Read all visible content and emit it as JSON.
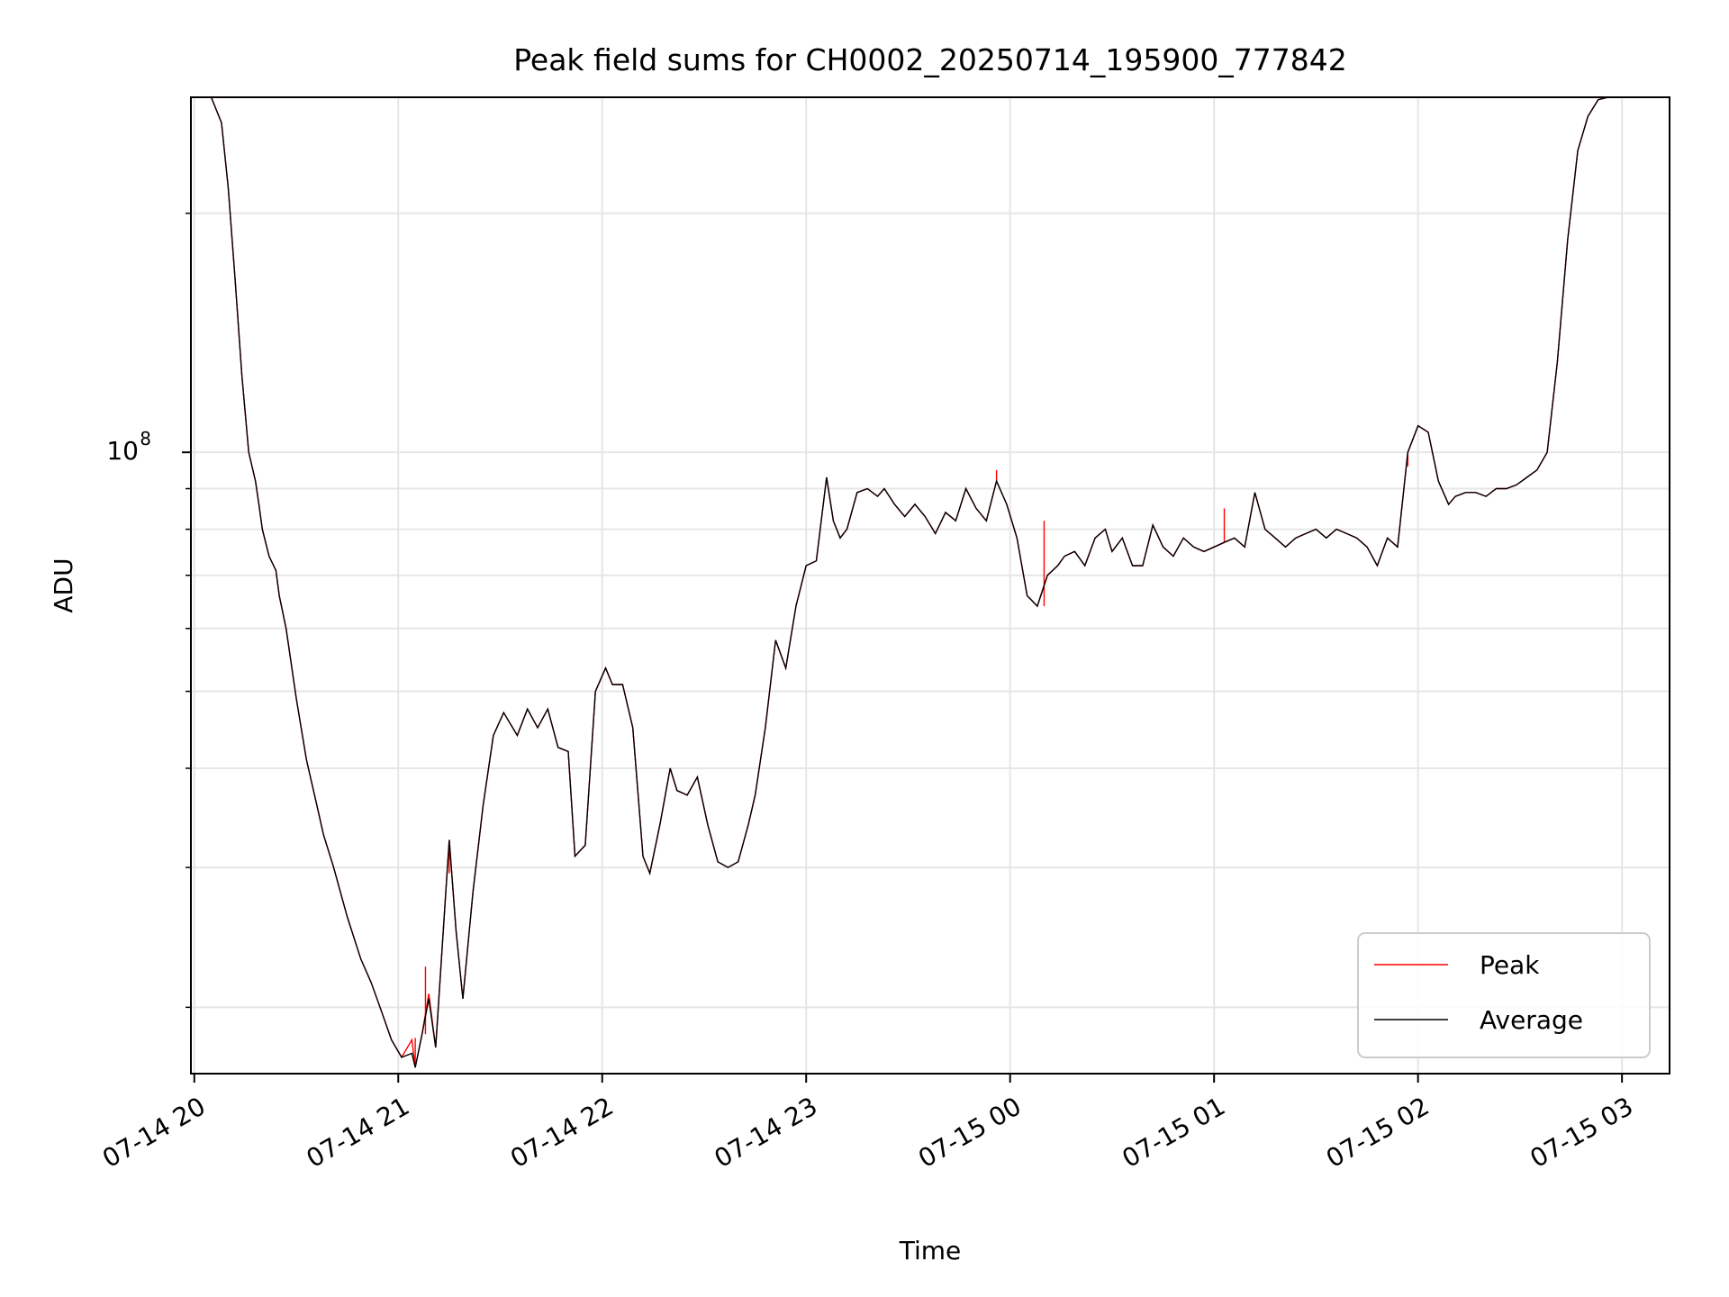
{
  "chart_data": {
    "type": "line",
    "title": "Peak field sums for CH0002_20250714_195900_777842",
    "xlabel": "Time",
    "ylabel": "ADU",
    "y_scale": "log",
    "y_tick_major_label": {
      "base": "10",
      "exp": "8",
      "value": 100000000
    },
    "y_minor_ticks": [
      20000000,
      30000000,
      40000000,
      50000000,
      60000000,
      70000000,
      80000000,
      90000000,
      200000000
    ],
    "ylim": [
      16500000,
      280000000
    ],
    "xlim": [
      "2025-07-14 19:59",
      "2025-07-15 03:14"
    ],
    "x_ticks": [
      {
        "t": "2025-07-14 20:00",
        "label": "07-14 20"
      },
      {
        "t": "2025-07-14 21:00",
        "label": "07-14 21"
      },
      {
        "t": "2025-07-14 22:00",
        "label": "07-14 22"
      },
      {
        "t": "2025-07-14 23:00",
        "label": "07-14 23"
      },
      {
        "t": "2025-07-15 00:00",
        "label": "07-15 00"
      },
      {
        "t": "2025-07-15 01:00",
        "label": "07-15 01"
      },
      {
        "t": "2025-07-15 02:00",
        "label": "07-15 02"
      },
      {
        "t": "2025-07-15 03:00",
        "label": "07-15 03"
      }
    ],
    "grid": true,
    "legend_position": "lower-right",
    "series": [
      {
        "name": "Peak",
        "color": "#ff0000",
        "width": 1.0
      },
      {
        "name": "Average",
        "color": "#000000",
        "width": 1.0
      }
    ],
    "x": [
      "2025-07-14 19:59",
      "2025-07-14 20:05",
      "2025-07-14 20:08",
      "2025-07-14 20:10",
      "2025-07-14 20:12",
      "2025-07-14 20:14",
      "2025-07-14 20:16",
      "2025-07-14 20:18",
      "2025-07-14 20:19",
      "2025-07-14 20:20",
      "2025-07-14 20:22",
      "2025-07-14 20:24",
      "2025-07-14 20:25",
      "2025-07-14 20:27",
      "2025-07-14 20:30",
      "2025-07-14 20:33",
      "2025-07-14 20:36",
      "2025-07-14 20:38",
      "2025-07-14 20:41",
      "2025-07-14 20:45",
      "2025-07-14 20:49",
      "2025-07-14 20:52",
      "2025-07-14 20:55",
      "2025-07-14 20:58",
      "2025-07-14 21:01",
      "2025-07-14 21:04",
      "2025-07-14 21:05",
      "2025-07-14 21:07",
      "2025-07-14 21:09",
      "2025-07-14 21:11",
      "2025-07-14 21:14",
      "2025-07-14 21:15",
      "2025-07-14 21:17",
      "2025-07-14 21:19",
      "2025-07-14 21:22",
      "2025-07-14 21:25",
      "2025-07-14 21:28",
      "2025-07-14 21:31",
      "2025-07-14 21:35",
      "2025-07-14 21:38",
      "2025-07-14 21:41",
      "2025-07-14 21:44",
      "2025-07-14 21:47",
      "2025-07-14 21:50",
      "2025-07-14 21:52",
      "2025-07-14 21:55",
      "2025-07-14 21:58",
      "2025-07-14 22:01",
      "2025-07-14 22:03",
      "2025-07-14 22:06",
      "2025-07-14 22:09",
      "2025-07-14 22:12",
      "2025-07-14 22:14",
      "2025-07-14 22:17",
      "2025-07-14 22:20",
      "2025-07-14 22:22",
      "2025-07-14 22:25",
      "2025-07-14 22:28",
      "2025-07-14 22:31",
      "2025-07-14 22:34",
      "2025-07-14 22:37",
      "2025-07-14 22:40",
      "2025-07-14 22:43",
      "2025-07-14 22:45",
      "2025-07-14 22:48",
      "2025-07-14 22:51",
      "2025-07-14 22:54",
      "2025-07-14 22:57",
      "2025-07-14 23:00",
      "2025-07-14 23:03",
      "2025-07-14 23:06",
      "2025-07-14 23:08",
      "2025-07-14 23:10",
      "2025-07-14 23:12",
      "2025-07-14 23:15",
      "2025-07-14 23:18",
      "2025-07-14 23:21",
      "2025-07-14 23:23",
      "2025-07-14 23:26",
      "2025-07-14 23:29",
      "2025-07-14 23:32",
      "2025-07-14 23:35",
      "2025-07-14 23:38",
      "2025-07-14 23:41",
      "2025-07-14 23:44",
      "2025-07-14 23:47",
      "2025-07-14 23:50",
      "2025-07-14 23:53",
      "2025-07-14 23:56",
      "2025-07-14 23:59",
      "2025-07-15 00:02",
      "2025-07-15 00:05",
      "2025-07-15 00:08",
      "2025-07-15 00:11",
      "2025-07-15 00:14",
      "2025-07-15 00:16",
      "2025-07-15 00:19",
      "2025-07-15 00:22",
      "2025-07-15 00:25",
      "2025-07-15 00:28",
      "2025-07-15 00:30",
      "2025-07-15 00:33",
      "2025-07-15 00:36",
      "2025-07-15 00:39",
      "2025-07-15 00:42",
      "2025-07-15 00:45",
      "2025-07-15 00:48",
      "2025-07-15 00:51",
      "2025-07-15 00:54",
      "2025-07-15 00:57",
      "2025-07-15 01:00",
      "2025-07-15 01:03",
      "2025-07-15 01:06",
      "2025-07-15 01:09",
      "2025-07-15 01:12",
      "2025-07-15 01:15",
      "2025-07-15 01:18",
      "2025-07-15 01:21",
      "2025-07-15 01:24",
      "2025-07-15 01:27",
      "2025-07-15 01:30",
      "2025-07-15 01:33",
      "2025-07-15 01:36",
      "2025-07-15 01:39",
      "2025-07-15 01:42",
      "2025-07-15 01:45",
      "2025-07-15 01:48",
      "2025-07-15 01:51",
      "2025-07-15 01:54",
      "2025-07-15 01:57",
      "2025-07-15 02:00",
      "2025-07-15 02:03",
      "2025-07-15 02:06",
      "2025-07-15 02:09",
      "2025-07-15 02:11",
      "2025-07-15 02:14",
      "2025-07-15 02:17",
      "2025-07-15 02:20",
      "2025-07-15 02:23",
      "2025-07-15 02:26",
      "2025-07-15 02:29",
      "2025-07-15 02:32",
      "2025-07-15 02:35",
      "2025-07-15 02:38",
      "2025-07-15 02:41",
      "2025-07-15 02:44",
      "2025-07-15 02:47",
      "2025-07-15 02:50",
      "2025-07-15 02:53",
      "2025-07-15 02:56",
      "2025-07-15 03:00",
      "2025-07-15 03:02"
    ],
    "average": [
      280000000,
      280000000,
      260000000,
      215000000,
      165000000,
      125000000,
      100000000,
      92000000,
      86000000,
      80000000,
      74000000,
      71000000,
      66000000,
      60000000,
      49000000,
      41000000,
      36000000,
      33000000,
      30000000,
      26000000,
      23000000,
      21500000,
      19800000,
      18200000,
      17300000,
      17500000,
      16800000,
      18500000,
      20500000,
      17800000,
      28000000,
      32500000,
      25000000,
      20500000,
      28000000,
      36000000,
      44000000,
      47000000,
      44000000,
      47500000,
      45000000,
      47500000,
      42500000,
      42000000,
      31000000,
      32000000,
      50000000,
      53500000,
      51000000,
      51000000,
      45000000,
      31000000,
      29500000,
      34000000,
      40000000,
      37500000,
      37000000,
      39000000,
      34000000,
      30500000,
      30000000,
      30500000,
      34000000,
      37000000,
      45000000,
      58000000,
      53500000,
      64000000,
      72000000,
      73000000,
      93000000,
      82000000,
      78000000,
      80000000,
      89000000,
      90000000,
      88000000,
      90000000,
      86000000,
      83000000,
      86000000,
      83000000,
      79000000,
      84000000,
      82000000,
      90000000,
      85000000,
      82000000,
      92000000,
      86000000,
      78000000,
      66000000,
      64000000,
      70000000,
      72000000,
      74000000,
      75000000,
      72000000,
      78000000,
      80000000,
      75000000,
      78000000,
      72000000,
      72000000,
      81000000,
      76000000,
      74000000,
      78000000,
      76000000,
      75000000,
      76000000,
      77000000,
      78000000,
      76000000,
      89000000,
      80000000,
      78000000,
      76000000,
      78000000,
      79000000,
      80000000,
      78000000,
      80000000,
      79000000,
      78000000,
      76000000,
      72000000,
      78000000,
      76000000,
      100000000,
      108000000,
      106000000,
      92000000,
      86000000,
      88000000,
      89000000,
      89000000,
      88000000,
      90000000,
      90000000,
      91000000,
      93000000,
      95000000,
      100000000,
      130000000,
      185000000,
      240000000,
      265000000,
      278000000,
      280000000
    ],
    "peak": [
      280000000,
      280000000,
      260000000,
      215000000,
      165000000,
      125000000,
      100000000,
      92000000,
      86000000,
      80000000,
      74000000,
      71000000,
      66000000,
      60000000,
      49000000,
      41000000,
      36000000,
      33000000,
      30000000,
      26000000,
      23000000,
      21500000,
      19800000,
      18200000,
      17300000,
      18200000,
      16800000,
      18500000,
      20800000,
      17800000,
      28000000,
      32500000,
      25000000,
      20500000,
      28000000,
      36000000,
      44000000,
      47000000,
      44000000,
      47500000,
      45000000,
      47500000,
      42500000,
      42000000,
      31000000,
      32000000,
      50000000,
      53500000,
      51000000,
      51000000,
      45000000,
      31000000,
      29500000,
      34000000,
      40000000,
      37500000,
      37000000,
      39000000,
      34000000,
      30500000,
      30000000,
      30500000,
      34000000,
      37000000,
      45000000,
      58000000,
      53500000,
      64000000,
      72000000,
      73000000,
      93000000,
      82000000,
      78000000,
      80000000,
      89000000,
      90000000,
      88000000,
      90000000,
      86000000,
      83000000,
      86000000,
      83000000,
      79000000,
      84000000,
      82000000,
      90000000,
      85000000,
      82000000,
      92000000,
      86000000,
      78000000,
      66000000,
      64000000,
      70000000,
      72000000,
      74000000,
      75000000,
      72000000,
      78000000,
      80000000,
      75000000,
      78000000,
      72000000,
      72000000,
      81000000,
      76000000,
      74000000,
      78000000,
      76000000,
      75000000,
      76000000,
      77000000,
      78000000,
      76000000,
      89000000,
      80000000,
      78000000,
      76000000,
      78000000,
      79000000,
      80000000,
      78000000,
      80000000,
      79000000,
      78000000,
      76000000,
      72000000,
      78000000,
      76000000,
      100000000,
      108000000,
      106000000,
      92000000,
      86000000,
      88000000,
      89000000,
      89000000,
      88000000,
      90000000,
      90000000,
      91000000,
      93000000,
      95000000,
      100000000,
      130000000,
      185000000,
      240000000,
      265000000,
      278000000,
      280000000
    ],
    "peak_spikes": [
      {
        "t": "2025-07-14 21:08",
        "value": 22500000
      },
      {
        "t": "2025-07-14 21:15",
        "value": 29500000
      },
      {
        "t": "2025-07-14 21:05",
        "value": 18300000
      },
      {
        "t": "2025-07-14 23:56",
        "value": 95000000
      },
      {
        "t": "2025-07-15 00:10",
        "value": 82000000
      },
      {
        "t": "2025-07-15 01:03",
        "value": 85000000
      },
      {
        "t": "2025-07-15 01:57",
        "value": 96000000
      }
    ]
  }
}
